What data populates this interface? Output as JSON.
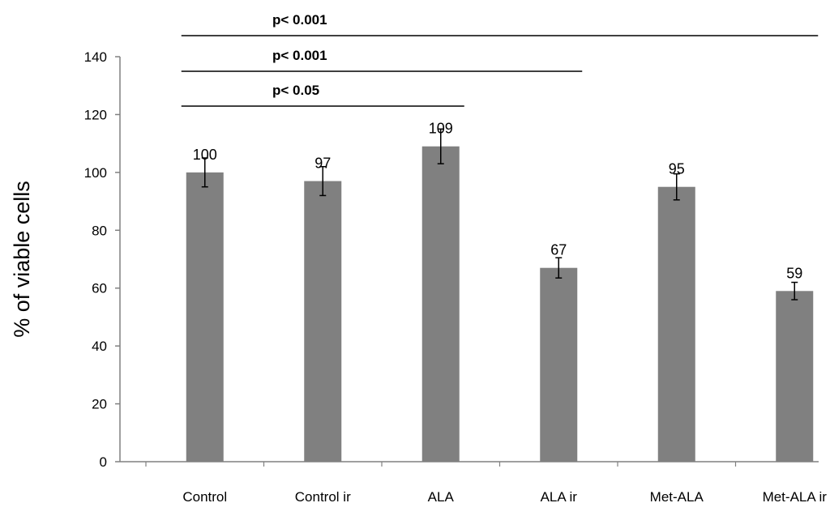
{
  "chart_data": {
    "type": "bar",
    "title": "",
    "xlabel": "",
    "ylabel": "% of viable cells",
    "ylim": [
      0,
      140
    ],
    "yticks": [
      0,
      20,
      40,
      60,
      80,
      100,
      120,
      140
    ],
    "grid": false,
    "legend": "none",
    "categories": [
      "Control",
      "Control ir",
      "ALA",
      "ALA ir",
      "Met-ALA",
      "Met-ALA ir"
    ],
    "values": [
      100,
      97,
      109,
      67,
      95,
      59
    ],
    "data_labels": [
      "100",
      "97",
      "109",
      "67",
      "95",
      "59"
    ],
    "errors": [
      5,
      5,
      6,
      3.5,
      4.5,
      3
    ],
    "bar_color": "#808080",
    "significance": [
      {
        "from": "Control",
        "to": "ALA",
        "label": "p< 0.05"
      },
      {
        "from": "Control",
        "to": "ALA ir",
        "label": "p< 0.001"
      },
      {
        "from": "Control",
        "to": "Met-ALA ir",
        "label": "p< 0.001"
      }
    ]
  }
}
